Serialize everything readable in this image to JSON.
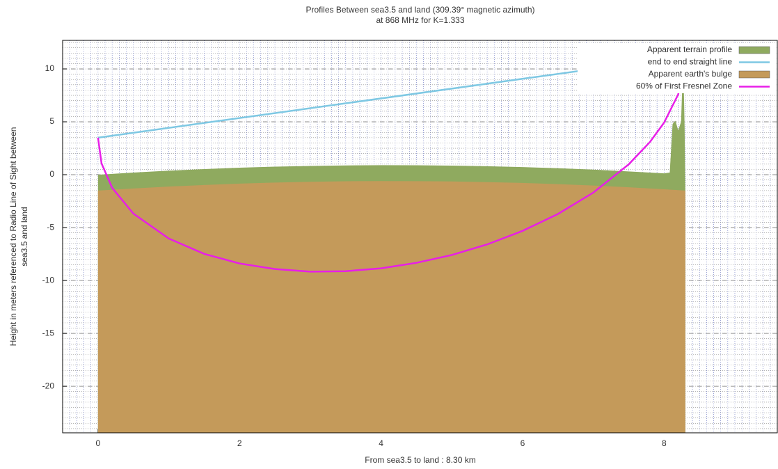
{
  "chart_data": {
    "type": "area",
    "title": "Profiles Between sea3.5 and land (309.39° magnetic azimuth)",
    "subtitle": "at 868 MHz for K=1.333",
    "xlabel": "From sea3.5 to land : 8.30 km",
    "ylabel": [
      "Height in meters referenced to Radio Line of Sight between",
      "sea3.5 and land"
    ],
    "xlim": [
      -0.5,
      9.6
    ],
    "ylim": [
      -24.4,
      12.7
    ],
    "xticks": [
      0,
      2,
      4,
      6,
      8
    ],
    "yticks": [
      -20,
      -15,
      -10,
      -5,
      0,
      5,
      10
    ],
    "grid": true,
    "legend": "top-right",
    "series": [
      {
        "name": "Apparent terrain profile",
        "style": "area",
        "color": "#8faa5f",
        "x": [
          0,
          0.5,
          1,
          1.5,
          2,
          2.5,
          3,
          3.5,
          4,
          4.5,
          5,
          5.5,
          6,
          6.5,
          7,
          7.5,
          8,
          8.08,
          8.12,
          8.16,
          8.2,
          8.24,
          8.27,
          8.29,
          8.3
        ],
        "values": [
          0,
          0.2,
          0.38,
          0.53,
          0.66,
          0.76,
          0.83,
          0.88,
          0.9,
          0.89,
          0.86,
          0.8,
          0.72,
          0.61,
          0.48,
          0.31,
          0.13,
          0.2,
          4.8,
          5.1,
          4.2,
          5.0,
          11,
          4.5,
          -1.5
        ]
      },
      {
        "name": "end to end straight line",
        "style": "line",
        "color": "#7ec8e3",
        "x": [
          0,
          8.3
        ],
        "values": [
          3.5,
          11.2
        ]
      },
      {
        "name": "Apparent earth's bulge",
        "style": "area",
        "color": "#c49a5a",
        "x": [
          0,
          0.5,
          1,
          1.5,
          2,
          2.5,
          3,
          3.5,
          4,
          4.5,
          5,
          5.5,
          6,
          6.5,
          7,
          7.5,
          8,
          8.3
        ],
        "values": [
          -1.5,
          -1.3,
          -1.12,
          -0.97,
          -0.84,
          -0.74,
          -0.67,
          -0.62,
          -0.6,
          -0.61,
          -0.64,
          -0.7,
          -0.78,
          -0.89,
          -1.02,
          -1.19,
          -1.38,
          -1.5
        ]
      },
      {
        "name": "60% of First Fresnel Zone",
        "style": "line",
        "color": "#e81ee8",
        "x": [
          0,
          0.05,
          0.2,
          0.5,
          1,
          1.5,
          2,
          2.5,
          3,
          3.5,
          4,
          4.5,
          5,
          5.5,
          6,
          6.5,
          7,
          7.5,
          7.8,
          8.0,
          8.2,
          8.3
        ],
        "values": [
          3.5,
          1.06,
          -1.24,
          -3.68,
          -6.03,
          -7.48,
          -8.39,
          -8.92,
          -9.16,
          -9.12,
          -8.85,
          -8.33,
          -7.59,
          -6.59,
          -5.31,
          -3.71,
          -1.69,
          0.98,
          3.09,
          4.92,
          7.6,
          11.2
        ]
      }
    ]
  }
}
